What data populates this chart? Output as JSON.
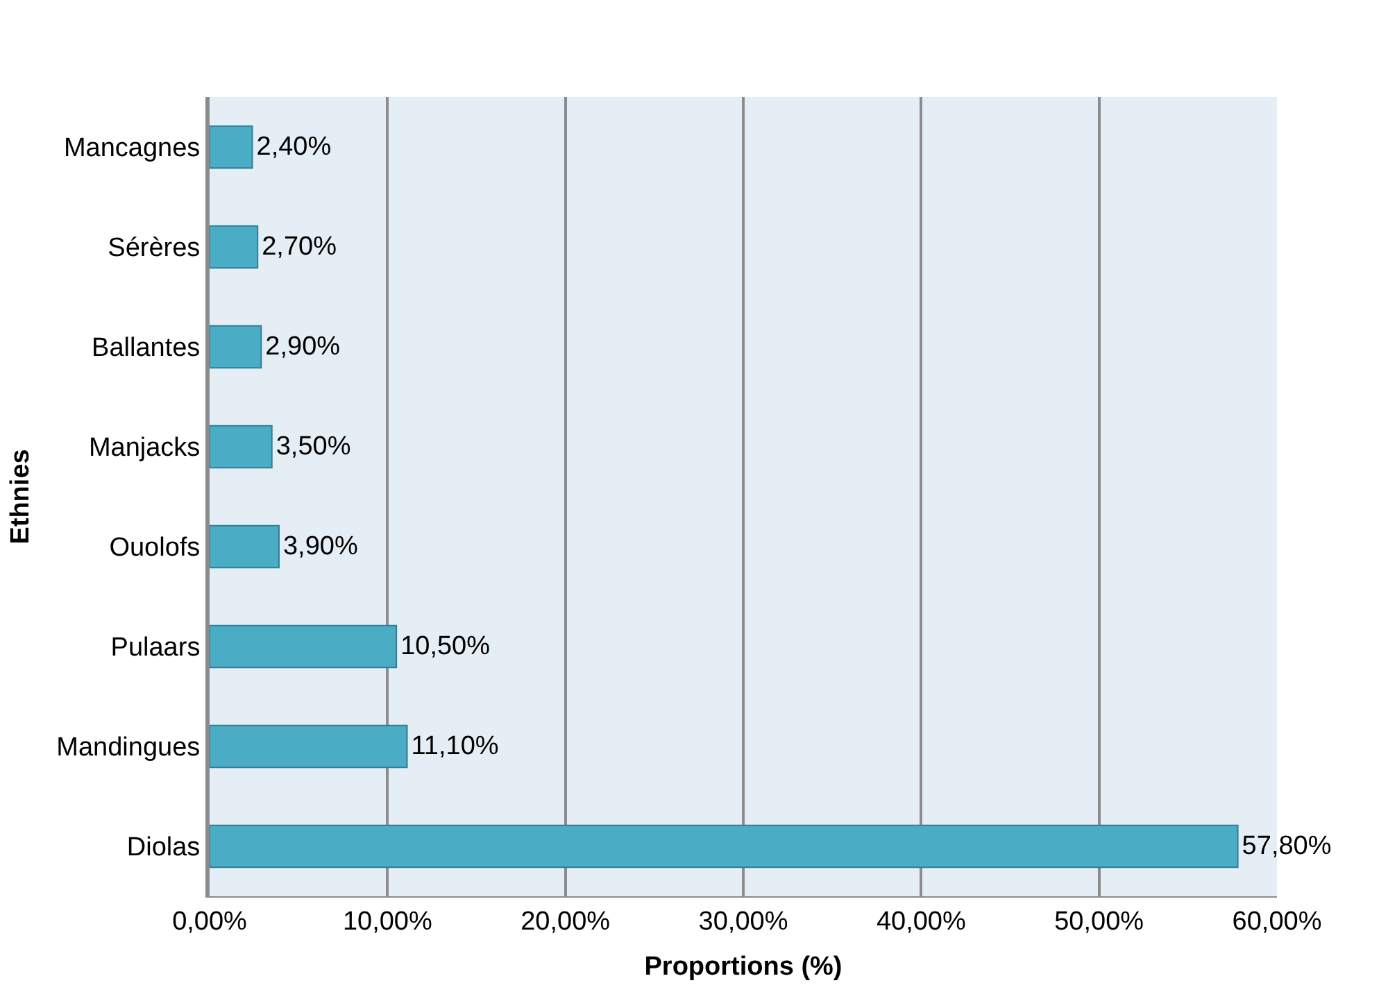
{
  "chart_data": {
    "type": "bar",
    "orientation": "horizontal",
    "xlabel": "Proportions (%)",
    "ylabel": "Ethnies",
    "categories": [
      "Mancagnes",
      "Sérères",
      "Ballantes",
      "Manjacks",
      "Ouolofs",
      "Pulaars",
      "Mandingues",
      "Diolas"
    ],
    "values": [
      2.4,
      2.7,
      2.9,
      3.5,
      3.9,
      10.5,
      11.1,
      57.8
    ],
    "value_labels": [
      "2,40%",
      "2,70%",
      "2,90%",
      "3,50%",
      "3,90%",
      "10,50%",
      "11,10%",
      "57,80%"
    ],
    "color": "#4bacc6",
    "xlim": [
      0,
      60
    ],
    "xticks": [
      {
        "value": 0,
        "label": "0,00%"
      },
      {
        "value": 10,
        "label": "10,00%"
      },
      {
        "value": 20,
        "label": "20,00%"
      },
      {
        "value": 30,
        "label": "30,00%"
      },
      {
        "value": 40,
        "label": "40,00%"
      },
      {
        "value": 50,
        "label": "50,00%"
      },
      {
        "value": 60,
        "label": "60,00%"
      }
    ],
    "grid": "x",
    "legend": false
  }
}
